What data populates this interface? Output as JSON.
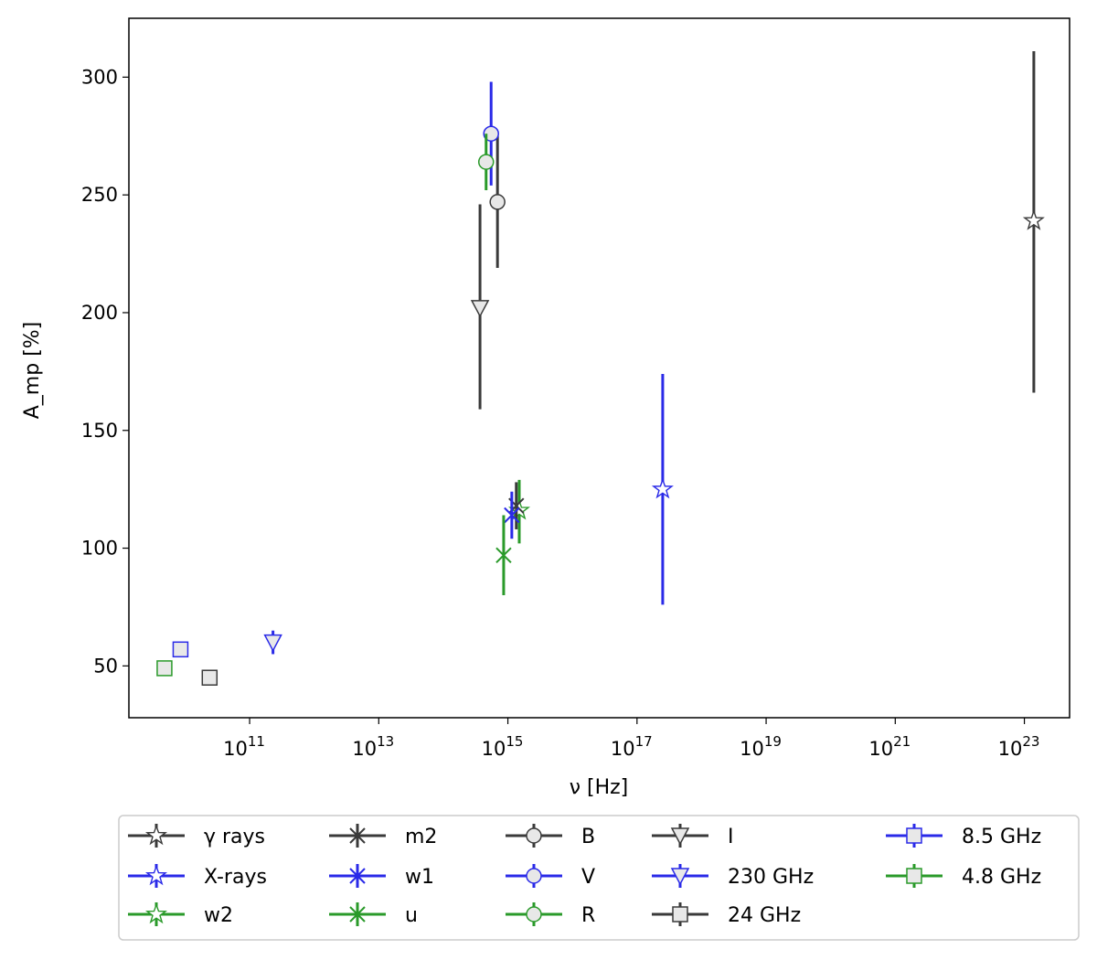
{
  "chart_data": {
    "type": "scatter",
    "title": "",
    "xlabel": "ν [Hz]",
    "ylabel": "A_mp [%]",
    "xscale": "log",
    "x_log10_range": [
      9.13,
      23.7
    ],
    "ylim": [
      28,
      325
    ],
    "xticks": [
      {
        "exp": 11,
        "base": "10",
        "sup": "11"
      },
      {
        "exp": 13,
        "base": "10",
        "sup": "13"
      },
      {
        "exp": 15,
        "base": "10",
        "sup": "15"
      },
      {
        "exp": 17,
        "base": "10",
        "sup": "17"
      },
      {
        "exp": 19,
        "base": "10",
        "sup": "19"
      },
      {
        "exp": 21,
        "base": "10",
        "sup": "21"
      },
      {
        "exp": 23,
        "base": "10",
        "sup": "23"
      }
    ],
    "yticks": [
      50,
      100,
      150,
      200,
      250,
      300
    ],
    "grid": false,
    "legend_position": "below plot",
    "legend_columns": 5,
    "colors": {
      "black": "#3a3a3a",
      "blue": "#2a2ae8",
      "green": "#2a9a2a"
    },
    "series": [
      {
        "name": "γ rays",
        "marker": "star",
        "color": "#3a3a3a",
        "x": 1.4e+23,
        "y": 239,
        "yerr": [
          73,
          72
        ]
      },
      {
        "name": "X-rays",
        "marker": "star",
        "color": "#2a2ae8",
        "x": 2.5e+17,
        "y": 125,
        "yerr": [
          49,
          49
        ]
      },
      {
        "name": "w2",
        "marker": "star",
        "color": "#2a9a2a",
        "x": 1500000000000000.0,
        "y": 116,
        "yerr": [
          14,
          13
        ]
      },
      {
        "name": "m2",
        "marker": "x",
        "color": "#3a3a3a",
        "x": 1350000000000000.0,
        "y": 118,
        "yerr": [
          10,
          10
        ]
      },
      {
        "name": "w1",
        "marker": "x",
        "color": "#2a2ae8",
        "x": 1150000000000000.0,
        "y": 114,
        "yerr": [
          10,
          10
        ]
      },
      {
        "name": "u",
        "marker": "x",
        "color": "#2a9a2a",
        "x": 860000000000000.0,
        "y": 97,
        "yerr": [
          17,
          17
        ]
      },
      {
        "name": "B",
        "marker": "circle",
        "color": "#3a3a3a",
        "x": 690000000000000.0,
        "y": 247,
        "yerr": [
          28,
          28
        ]
      },
      {
        "name": "V",
        "marker": "circle",
        "color": "#2a2ae8",
        "x": 550000000000000.0,
        "y": 276,
        "yerr": [
          22,
          22
        ]
      },
      {
        "name": "R",
        "marker": "circle",
        "color": "#2a9a2a",
        "x": 460000000000000.0,
        "y": 264,
        "yerr": [
          12,
          12
        ]
      },
      {
        "name": "I",
        "marker": "triangle_down",
        "color": "#3a3a3a",
        "x": 370000000000000.0,
        "y": 202,
        "yerr": [
          43,
          44
        ]
      },
      {
        "name": "230 GHz",
        "marker": "triangle_down",
        "color": "#2a2ae8",
        "x": 230000000000.0,
        "y": 60,
        "yerr": [
          5,
          5
        ]
      },
      {
        "name": "24 GHz",
        "marker": "square",
        "color": "#3a3a3a",
        "x": 24000000000.0,
        "y": 45,
        "yerr": [
          1.5,
          1.5
        ]
      },
      {
        "name": "8.5 GHz",
        "marker": "square",
        "color": "#2a2ae8",
        "x": 8500000000.0,
        "y": 57,
        "yerr": [
          1.5,
          1.5
        ]
      },
      {
        "name": "4.8 GHz",
        "marker": "square",
        "color": "#2a9a2a",
        "x": 4800000000.0,
        "y": 49,
        "yerr": [
          1.5,
          1.5
        ]
      }
    ]
  }
}
